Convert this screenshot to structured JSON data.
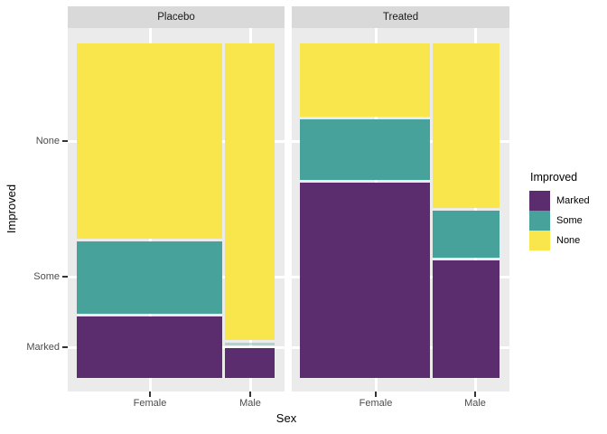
{
  "axes": {
    "x_title": "Sex",
    "y_title": "Improved",
    "y_tick_labels": [
      "None",
      "Some",
      "Marked"
    ]
  },
  "legend": {
    "title": "Improved",
    "entries": [
      {
        "label": "Marked",
        "color": "#5C2D6E"
      },
      {
        "label": "Some",
        "color": "#46A29B"
      },
      {
        "label": "None",
        "color": "#F9E64C"
      }
    ]
  },
  "colors": {
    "panel_background": "#EBEBEB",
    "strip_background": "#D9D9D9",
    "gridline": "#FFFFFF",
    "axis_text": "#4D4D4D",
    "tick_mark": "#333333",
    "outer_background": "#FFFFFF"
  },
  "chart_data": {
    "type": "bar",
    "subtype": "mosaic (100% stacked bars with proportional widths, faceted)",
    "title": "",
    "xlabel": "Sex",
    "ylabel": "Improved",
    "grid": "on",
    "legend_position": "right",
    "facet_labels": [
      "Placebo",
      "Treated"
    ],
    "stack_order_top_to_bottom": [
      "None",
      "Some",
      "Marked"
    ],
    "series_colors": {
      "Marked": "#5C2D6E",
      "Some": "#46A29B",
      "None": "#F9E64C"
    },
    "facets": [
      {
        "label": "Placebo",
        "columns": [
          {
            "category": "Female",
            "width_prop": 0.744,
            "segments": [
              {
                "name": "None",
                "prop": 0.594
              },
              {
                "name": "Some",
                "prop": 0.219
              },
              {
                "name": "Marked",
                "prop": 0.188
              }
            ]
          },
          {
            "category": "Male",
            "width_prop": 0.256,
            "segments": [
              {
                "name": "None",
                "prop": 0.909
              },
              {
                "name": "Some",
                "prop": 0.0
              },
              {
                "name": "Marked",
                "prop": 0.091
              }
            ]
          }
        ]
      },
      {
        "label": "Treated",
        "columns": [
          {
            "category": "Female",
            "width_prop": 0.659,
            "segments": [
              {
                "name": "None",
                "prop": 0.222
              },
              {
                "name": "Some",
                "prop": 0.185
              },
              {
                "name": "Marked",
                "prop": 0.593
              }
            ]
          },
          {
            "category": "Male",
            "width_prop": 0.341,
            "segments": [
              {
                "name": "None",
                "prop": 0.5
              },
              {
                "name": "Some",
                "prop": 0.143
              },
              {
                "name": "Marked",
                "prop": 0.357
              }
            ]
          }
        ]
      }
    ]
  }
}
